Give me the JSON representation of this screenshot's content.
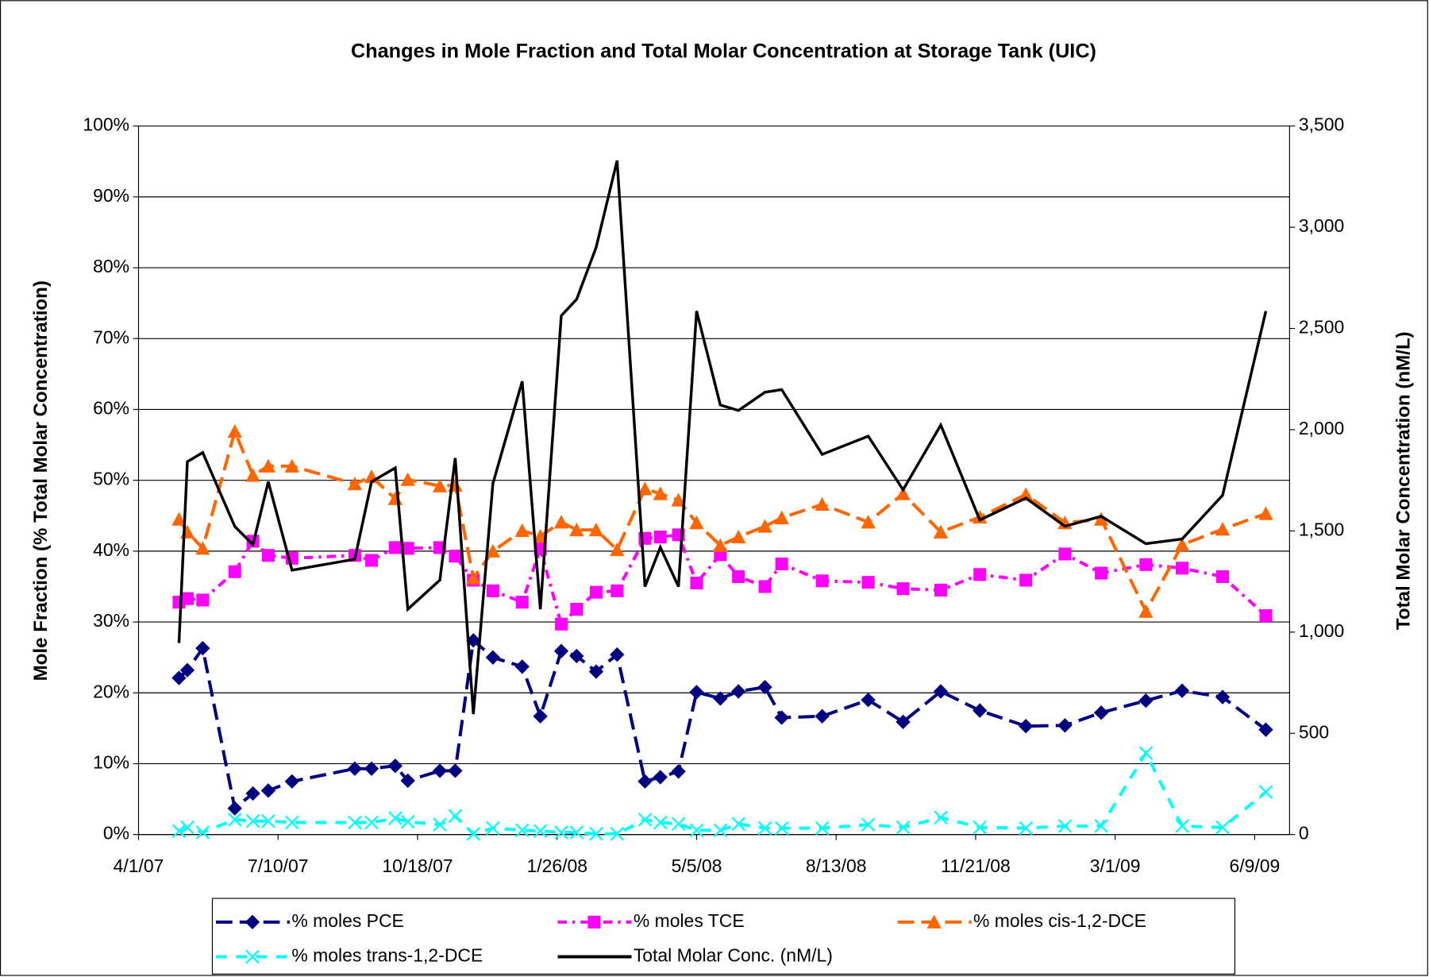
{
  "chart_data": {
    "type": "line",
    "title": "Changes in Mole Fraction and Total Molar Concentration at Storage Tank (UIC)",
    "y_label": "Mole Fraction (% Total Molar Concentration)",
    "y2_label": "Total Molar Concentration (nM/L)",
    "x": [
      "2007-04-30",
      "2007-05-06",
      "2007-05-17",
      "2007-06-09",
      "2007-06-22",
      "2007-07-03",
      "2007-07-20",
      "2007-09-03",
      "2007-09-15",
      "2007-10-02",
      "2007-10-11",
      "2007-11-03",
      "2007-11-14",
      "2007-11-27",
      "2007-12-11",
      "2008-01-01",
      "2008-01-14",
      "2008-01-29",
      "2008-02-09",
      "2008-02-23",
      "2008-03-09",
      "2008-03-29",
      "2008-04-09",
      "2008-04-22",
      "2008-05-05",
      "2008-05-22",
      "2008-06-04",
      "2008-06-23",
      "2008-07-05",
      "2008-08-03",
      "2008-09-05",
      "2008-09-30",
      "2008-10-27",
      "2008-11-24",
      "2008-12-27",
      "2009-01-24",
      "2009-02-19",
      "2009-03-23",
      "2009-04-18",
      "2009-05-17",
      "2009-06-17"
    ],
    "xlim": [
      "2007-04-01",
      "2009-07-04"
    ],
    "xticks": [
      {
        "value": "2007-04-01",
        "label": "4/1/07"
      },
      {
        "value": "2007-07-10",
        "label": "7/10/07"
      },
      {
        "value": "2007-10-18",
        "label": "10/18/07"
      },
      {
        "value": "2008-01-26",
        "label": "1/26/08"
      },
      {
        "value": "2008-05-05",
        "label": "5/5/08"
      },
      {
        "value": "2008-08-13",
        "label": "8/13/08"
      },
      {
        "value": "2008-11-21",
        "label": "11/21/08"
      },
      {
        "value": "2009-03-01",
        "label": "3/1/09"
      },
      {
        "value": "2009-06-09",
        "label": "6/9/09"
      }
    ],
    "ylim": [
      0,
      100
    ],
    "yticks": [
      {
        "value": 0,
        "label": "0%"
      },
      {
        "value": 10,
        "label": "10%"
      },
      {
        "value": 20,
        "label": "20%"
      },
      {
        "value": 30,
        "label": "30%"
      },
      {
        "value": 40,
        "label": "40%"
      },
      {
        "value": 50,
        "label": "50%"
      },
      {
        "value": 60,
        "label": "60%"
      },
      {
        "value": 70,
        "label": "70%"
      },
      {
        "value": 80,
        "label": "80%"
      },
      {
        "value": 90,
        "label": "90%"
      },
      {
        "value": 100,
        "label": "100%"
      }
    ],
    "y2lim": [
      0,
      3500
    ],
    "y2ticks": [
      0,
      500,
      {
        "value": 1000,
        "label": "1,000"
      },
      {
        "value": 1500,
        "label": "1,500"
      },
      {
        "value": 2000,
        "label": "2,000"
      },
      {
        "value": 2500,
        "label": "2,500"
      },
      {
        "value": 3000,
        "label": "3,000"
      },
      {
        "value": 3500,
        "label": "3,500"
      }
    ],
    "grid": true,
    "legend": "bottom",
    "series": [
      {
        "name": "% moles PCE",
        "color": "#000080",
        "marker": "diamond",
        "line_style": "long-dash",
        "values": [
          22.1,
          23.2,
          26.3,
          3.7,
          5.8,
          6.2,
          7.5,
          9.3,
          9.3,
          9.7,
          7.6,
          9.0,
          9.0,
          27.4,
          25.0,
          23.7,
          16.7,
          25.9,
          25.2,
          23.0,
          25.4,
          7.5,
          8.1,
          8.9,
          20.1,
          19.2,
          20.2,
          20.8,
          16.5,
          16.7,
          19.0,
          15.9,
          20.2,
          17.5,
          15.3,
          15.4,
          17.2,
          18.9,
          20.3,
          19.4,
          14.8
        ]
      },
      {
        "name": "% moles TCE",
        "color": "#ff00ff",
        "marker": "square",
        "line_style": "dash-dot",
        "values": [
          32.8,
          33.3,
          33.1,
          37.1,
          41.4,
          39.4,
          39.0,
          39.4,
          38.7,
          40.5,
          40.4,
          40.5,
          39.3,
          35.9,
          34.4,
          32.8,
          40.3,
          29.7,
          31.8,
          34.2,
          34.4,
          41.8,
          42.0,
          42.3,
          35.5,
          39.5,
          36.4,
          35.0,
          38.2,
          35.8,
          35.6,
          34.7,
          34.5,
          36.7,
          35.9,
          39.6,
          36.9,
          38.1,
          37.6,
          36.4,
          30.9
        ]
      },
      {
        "name": "% moles cis-1,2-DCE",
        "color": "#ff6600",
        "marker": "triangle",
        "line_style": "long-dash",
        "values": [
          44.5,
          42.7,
          40.4,
          56.9,
          50.7,
          52.0,
          52.0,
          49.5,
          50.5,
          47.4,
          50.1,
          49.2,
          49.3,
          36.2,
          40.0,
          42.9,
          42.1,
          44.1,
          43.0,
          43.0,
          40.2,
          48.8,
          48.1,
          47.2,
          44.0,
          40.8,
          42.0,
          43.5,
          44.7,
          46.6,
          44.1,
          48.1,
          42.7,
          44.8,
          48.0,
          44.0,
          44.5,
          31.5,
          40.9,
          43.1,
          45.3
        ]
      },
      {
        "name": "% moles trans-1,2-DCE",
        "color": "#00ffff",
        "marker": "x",
        "line_style": "dash",
        "values": [
          0.5,
          1.0,
          0.3,
          2.1,
          1.9,
          1.9,
          1.7,
          1.7,
          1.7,
          2.3,
          1.8,
          1.4,
          2.6,
          0.1,
          0.9,
          0.6,
          0.5,
          0.3,
          0.3,
          0.1,
          0.1,
          2.1,
          1.7,
          1.5,
          0.6,
          0.6,
          1.5,
          0.9,
          0.9,
          0.9,
          1.4,
          1.0,
          2.4,
          1.0,
          0.9,
          1.2,
          1.2,
          11.5,
          1.2,
          1.0,
          6.0
        ]
      },
      {
        "name": "Total Molar Conc. (nM/L)",
        "color": "#000000",
        "marker": null,
        "line_style": "solid",
        "axis": "y2",
        "values": [
          946,
          1842,
          1887,
          1522,
          1432,
          1743,
          1306,
          1360,
          1743,
          1811,
          1113,
          1257,
          1860,
          595,
          1734,
          2239,
          1113,
          2563,
          2644,
          2901,
          3329,
          1225,
          1419,
          1225,
          2586,
          2122,
          2095,
          2185,
          2198,
          1878,
          1968,
          1703,
          2023,
          1554,
          1662,
          1523,
          1572,
          1437,
          1460,
          1676,
          2586
        ]
      }
    ]
  }
}
